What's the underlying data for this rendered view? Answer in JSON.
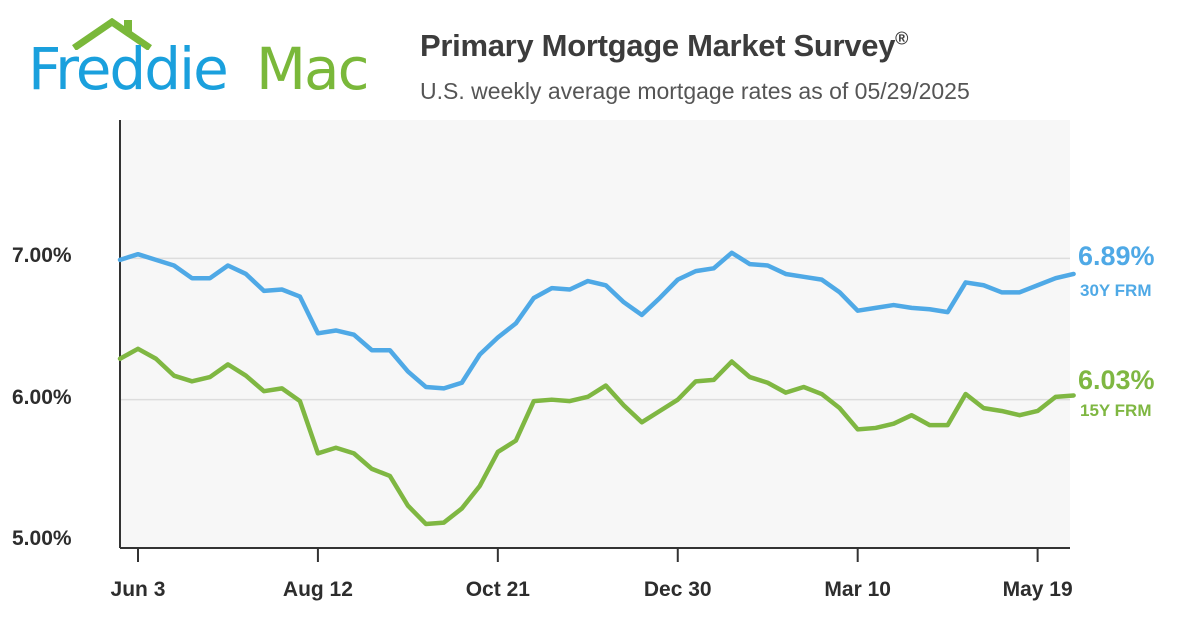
{
  "logo": {
    "word1": "Freddie",
    "word2": "Mac"
  },
  "header": {
    "title": "Primary Mortgage Market Survey",
    "title_mark": "®",
    "subtitle": "U.S. weekly average mortgage rates as of 05/29/2025"
  },
  "colors": {
    "series_30y": "#4fa9e6",
    "series_15y": "#7fb742",
    "plot_bg": "#f7f7f7",
    "grid": "#dddddd",
    "axis": "#333333"
  },
  "chart_data": {
    "type": "line",
    "title": "Primary Mortgage Market Survey",
    "subtitle": "U.S. weekly average mortgage rates as of 05/29/2025",
    "x_tick_labels": [
      "Jun 3",
      "Aug 12",
      "Oct 21",
      "Dec 30",
      "Mar 10",
      "May 19"
    ],
    "x_tick_weeks": [
      1,
      11,
      21,
      31,
      41,
      51
    ],
    "y_tick_labels": [
      "7.00%",
      "6.00%",
      "5.00%"
    ],
    "y_tick_values": [
      7.0,
      6.0,
      5.0
    ],
    "ylim": [
      4.95,
      7.98
    ],
    "xlim": [
      0,
      52.8
    ],
    "grid": "horizontal at 6.00% and 7.00%",
    "series": [
      {
        "name": "30Y FRM",
        "last_label": "6.89%",
        "values": [
          6.99,
          7.03,
          6.99,
          6.95,
          6.86,
          6.86,
          6.95,
          6.89,
          6.77,
          6.78,
          6.73,
          6.47,
          6.49,
          6.46,
          6.35,
          6.35,
          6.2,
          6.09,
          6.08,
          6.12,
          6.32,
          6.44,
          6.54,
          6.72,
          6.79,
          6.78,
          6.84,
          6.81,
          6.69,
          6.6,
          6.72,
          6.85,
          6.91,
          6.93,
          7.04,
          6.96,
          6.95,
          6.89,
          6.87,
          6.85,
          6.76,
          6.63,
          6.65,
          6.67,
          6.65,
          6.64,
          6.62,
          6.83,
          6.81,
          6.76,
          6.76,
          6.81,
          6.86,
          6.89
        ]
      },
      {
        "name": "15Y FRM",
        "last_label": "6.03%",
        "values": [
          6.29,
          6.36,
          6.29,
          6.17,
          6.13,
          6.16,
          6.25,
          6.17,
          6.06,
          6.08,
          5.99,
          5.62,
          5.66,
          5.62,
          5.51,
          5.46,
          5.25,
          5.12,
          5.13,
          5.23,
          5.39,
          5.63,
          5.71,
          5.99,
          6.0,
          5.99,
          6.02,
          6.1,
          5.96,
          5.84,
          5.92,
          6.0,
          6.13,
          6.14,
          6.27,
          6.16,
          6.12,
          6.05,
          6.09,
          6.04,
          5.94,
          5.79,
          5.8,
          5.83,
          5.89,
          5.82,
          5.82,
          6.04,
          5.94,
          5.92,
          5.89,
          5.92,
          6.02,
          6.03
        ]
      }
    ]
  }
}
